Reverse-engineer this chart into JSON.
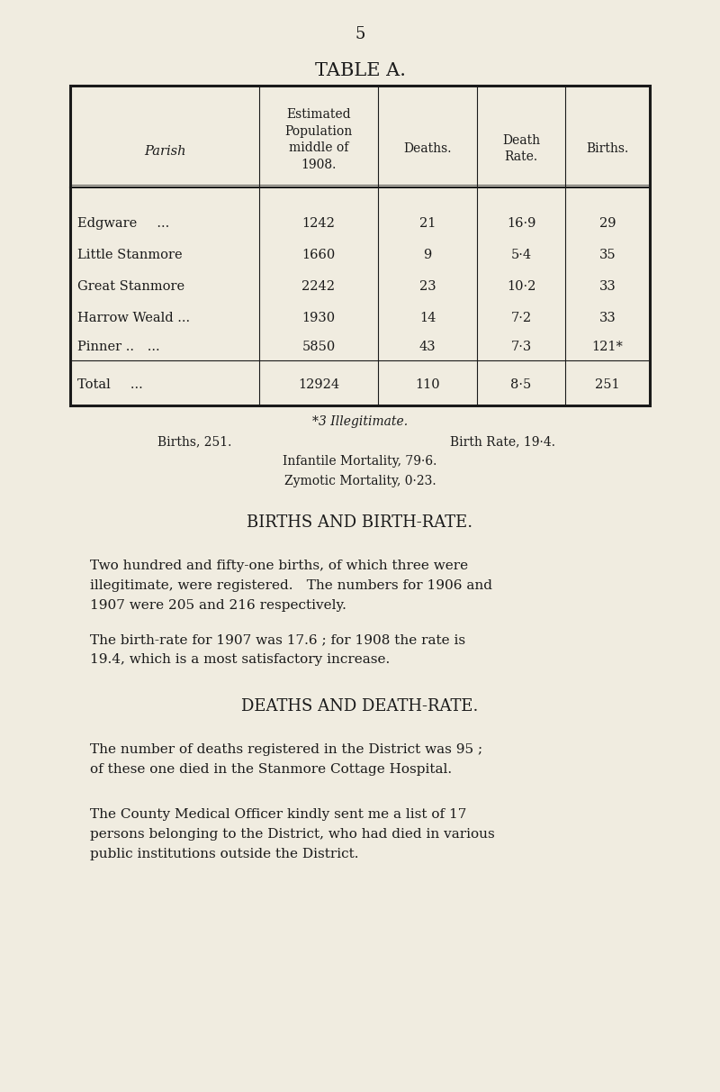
{
  "page_number": "5",
  "table_title": "TABLE A.",
  "bg_color": "#f0ece0",
  "text_color": "#1a1a1a",
  "col_headers": [
    "Parish",
    "Estimated\nPopulation\nmiddle of\n1908.",
    "Deaths.",
    "Death\nRate.",
    "Births."
  ],
  "rows": [
    [
      "Edgware   ...",
      "1242",
      "21",
      "16·9",
      "29"
    ],
    [
      "Little Stanmore",
      "1660",
      "9",
      "5·4",
      "35"
    ],
    [
      "Great Stanmore",
      "2242",
      "23",
      "10·2",
      "33"
    ],
    [
      "Harrow Weald ...",
      "1930",
      "14",
      "7·2",
      "33"
    ],
    [
      "Pinner ..  ...",
      "5850",
      "43",
      "7·3",
      "121*"
    ]
  ],
  "total_row": [
    "Total   ...",
    "12924",
    "110",
    "8·5",
    "251"
  ],
  "footnote_star": "*3 Illegitimate.",
  "footnote_line1_left": "Births, 251.",
  "footnote_line1_right": "Birth Rate, 19·4.",
  "footnote_line2": "Infantile Mortality, 79·6.",
  "footnote_line3": "Zymotic Mortality, 0·23.",
  "section1_title": "BIRTHS AND BIRTH-RATE.",
  "section1_para1": "Two hundred and fifty-one births, of which three were\nillegitimate, were registered. The numbers for 1906 and\n1907 were 205 and 216 respectively.",
  "section1_para2": "The birth-rate for 1907 was 17.6 ; for 1908 the rate is\n19.4, which is a most satisfactory increase.",
  "section2_title": "DEATHS AND DEATH-RATE.",
  "section2_para1": "The number of deaths registered in the District was 95 ;\nof these one died in the Stanmore Cottage Hospital.",
  "section2_para2": "The County Medical Officer kindly sent me a list of 17\npersons belonging to the District, who had died in various\npublic institutions outside the District."
}
